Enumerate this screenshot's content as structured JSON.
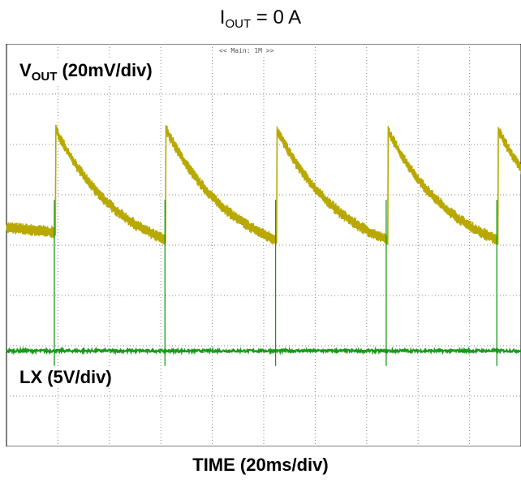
{
  "title": {
    "main": "I",
    "sub": "OUT",
    "rest": " = 0 A"
  },
  "scope_banner": "<< Main: 1M >>",
  "chart_data": {
    "type": "line",
    "title": "IOUT = 0 A",
    "xlabel": "TIME (20ms/div)",
    "x_divisions": 10,
    "y_divisions": 8,
    "grid": true,
    "series": [
      {
        "name": "VOUT (20mV/div)",
        "label_main": "V",
        "label_sub": "OUT",
        "label_rest": " (20mV/div)",
        "color": "#b8a800",
        "shape": "sawtooth",
        "period_div": 2.15,
        "first_reset_div": 0.95,
        "high_div": 6.3,
        "low_div": 4.1,
        "noise_div": 0.18
      },
      {
        "name": "LX (5V/div)",
        "label": "LX (5V/div)",
        "color": "#1a9a1a",
        "shape": "pulse",
        "baseline_div": 1.9,
        "spike_top_div": 4.9,
        "spike_bottom_div": 1.6,
        "period_div": 2.15,
        "first_spike_div": 0.93
      }
    ]
  }
}
